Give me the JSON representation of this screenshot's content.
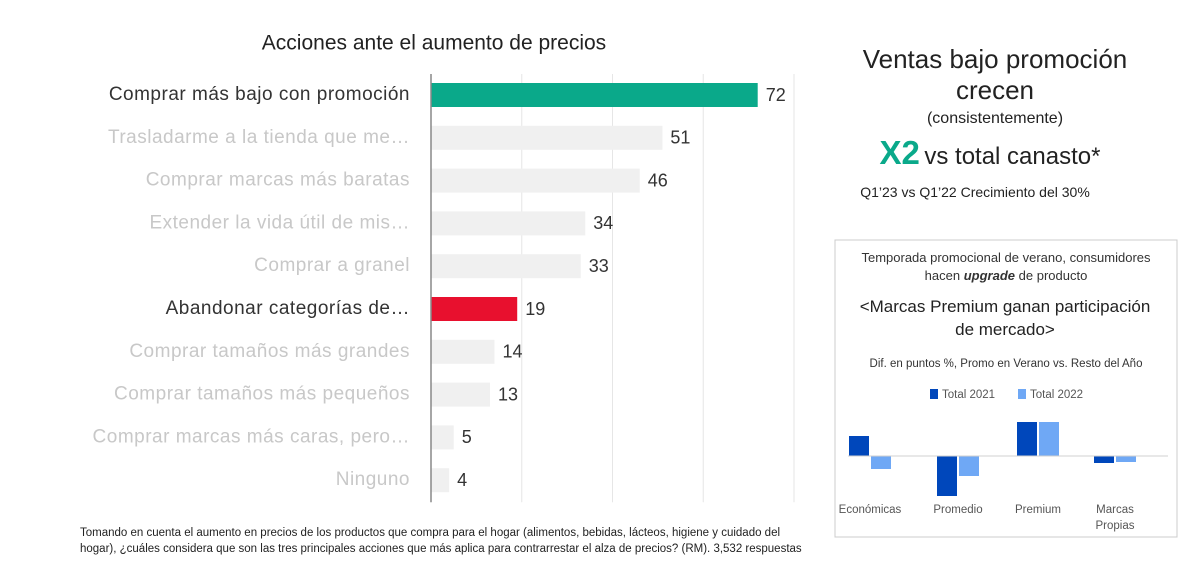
{
  "chart_data": [
    {
      "type": "hbar",
      "title": "Acciones ante el aumento de precios",
      "categories": [
        "Comprar más bajo con promoción",
        "Trasladarme a la tienda que me…",
        "Comprar marcas más baratas",
        "Extender la vida útil de mis…",
        "Comprar a granel",
        "Abandonar categorías de…",
        "Comprar tamaños más grandes",
        "Comprar tamaños más pequeños",
        "Comprar marcas más caras, pero…",
        "Ninguno"
      ],
      "values": [
        72,
        51,
        46,
        34,
        33,
        19,
        14,
        13,
        5,
        4
      ],
      "colors": [
        "#0aa98a",
        "#f0f0f0",
        "#f0f0f0",
        "#f0f0f0",
        "#f0f0f0",
        "#e8102e",
        "#f0f0f0",
        "#f0f0f0",
        "#f0f0f0",
        "#f0f0f0"
      ],
      "label_colors": [
        "#333333",
        "#c8c8c8",
        "#c8c8c8",
        "#c8c8c8",
        "#c8c8c8",
        "#333333",
        "#c8c8c8",
        "#c8c8c8",
        "#c8c8c8",
        "#c8c8c8"
      ],
      "xlim": [
        0,
        80
      ],
      "xticks": [
        0,
        20,
        40,
        60,
        80
      ],
      "grid": true
    },
    {
      "type": "grouped_bar",
      "title": "<Marcas Premium ganan participación de mercado>",
      "subtitle": "Dif. en puntos %, Promo en Verano vs. Resto del Año",
      "categories": [
        "Económicas",
        "Promedio",
        "Premium",
        "Marcas Propias"
      ],
      "series": [
        {
          "name": "Total 2021",
          "color": "#0047bb",
          "values": [
            2.0,
            -4.0,
            3.4,
            -0.7
          ]
        },
        {
          "name": "Total 2022",
          "color": "#6fa8f5",
          "values": [
            -1.3,
            -2.0,
            3.4,
            -0.6
          ]
        }
      ],
      "ylim": [
        -4.5,
        4.5
      ]
    }
  ],
  "panel": {
    "headline": "Ventas bajo promoción crecen",
    "headline_note": "(consistentemente)",
    "multiplier": "X2",
    "multiplier_text": "vs total canasto*",
    "growth": "Q1’23 vs Q1’22 Crecimiento del 30%",
    "box_intro": "Temporada promocional de verano, consumidores hacen",
    "box_emphasis": "upgrade",
    "box_tail": "de producto"
  },
  "footnote": "Tomando en cuenta el aumento en precios de los productos que compra para el hogar (alimentos, bebidas, lácteos, higiene y cuidado del hogar), ¿cuáles considera que son las tres principales acciones que más aplica para contrarrestar el alza de precios? (RM). 3,532 respuestas"
}
